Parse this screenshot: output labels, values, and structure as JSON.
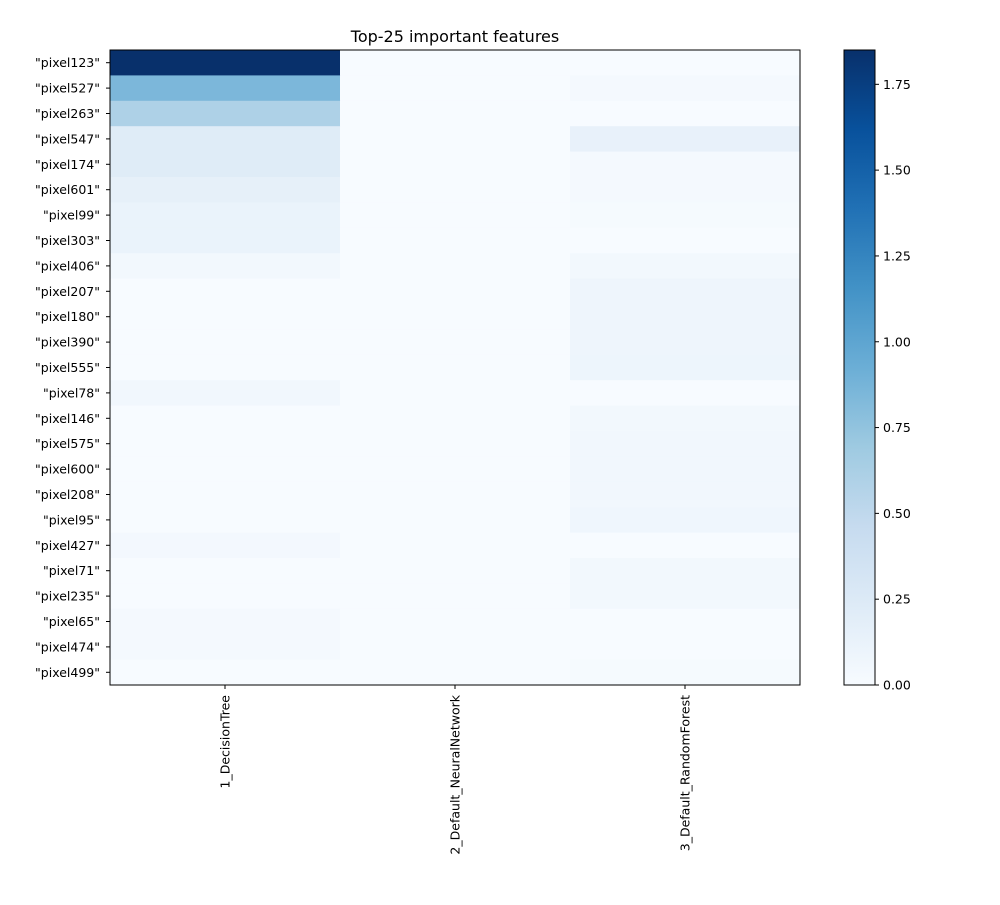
{
  "chart_data": {
    "type": "heatmap",
    "title": "Top-25 important features",
    "xlabel": "",
    "ylabel": "",
    "columns": [
      "1_DecisionTree",
      "2_Default_NeuralNetwork",
      "3_Default_RandomForest"
    ],
    "rows": [
      "\"pixel123\"",
      "\"pixel527\"",
      "\"pixel263\"",
      "\"pixel547\"",
      "\"pixel174\"",
      "\"pixel601\"",
      "\"pixel99\"",
      "\"pixel303\"",
      "\"pixel406\"",
      "\"pixel207\"",
      "\"pixel180\"",
      "\"pixel390\"",
      "\"pixel555\"",
      "\"pixel78\"",
      "\"pixel146\"",
      "\"pixel575\"",
      "\"pixel600\"",
      "\"pixel208\"",
      "\"pixel95\"",
      "\"pixel427\"",
      "\"pixel71\"",
      "\"pixel235\"",
      "\"pixel65\"",
      "\"pixel474\"",
      "\"pixel499\""
    ],
    "values": [
      [
        1.85,
        0.0,
        0.0
      ],
      [
        0.85,
        0.0,
        0.03
      ],
      [
        0.6,
        0.0,
        0.0
      ],
      [
        0.22,
        0.0,
        0.14
      ],
      [
        0.22,
        0.0,
        0.03
      ],
      [
        0.16,
        0.0,
        0.03
      ],
      [
        0.12,
        0.0,
        0.02
      ],
      [
        0.12,
        0.0,
        0.0
      ],
      [
        0.05,
        0.0,
        0.05
      ],
      [
        0.0,
        0.0,
        0.08
      ],
      [
        0.0,
        0.0,
        0.08
      ],
      [
        0.0,
        0.0,
        0.08
      ],
      [
        0.0,
        0.0,
        0.09
      ],
      [
        0.06,
        0.0,
        0.0
      ],
      [
        0.0,
        0.0,
        0.05
      ],
      [
        0.0,
        0.0,
        0.06
      ],
      [
        0.0,
        0.0,
        0.06
      ],
      [
        0.0,
        0.0,
        0.06
      ],
      [
        0.0,
        0.0,
        0.07
      ],
      [
        0.04,
        0.0,
        0.0
      ],
      [
        0.0,
        0.0,
        0.05
      ],
      [
        0.0,
        0.0,
        0.05
      ],
      [
        0.03,
        0.0,
        0.0
      ],
      [
        0.03,
        0.0,
        0.0
      ],
      [
        0.0,
        0.0,
        0.02
      ]
    ],
    "colormap": "Blues",
    "colormap_stops": [
      "#f7fbff",
      "#deebf7",
      "#c6dbef",
      "#9ecae1",
      "#6baed6",
      "#4292c6",
      "#2171b5",
      "#08519c",
      "#08306b"
    ],
    "vmin": 0,
    "vmax": 1.85,
    "colorbar_ticks": [
      0.0,
      0.25,
      0.5,
      0.75,
      1.0,
      1.25,
      1.5,
      1.75
    ],
    "colorbar_tick_labels": [
      "0.00",
      "0.25",
      "0.50",
      "0.75",
      "1.00",
      "1.25",
      "1.50",
      "1.75"
    ],
    "legend": "colorbar-right",
    "grid": false
  }
}
